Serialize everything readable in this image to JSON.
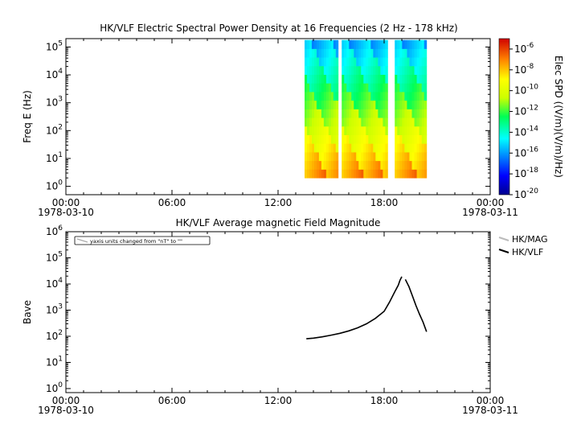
{
  "chart_data": [
    {
      "type": "heatmap",
      "title": "HK/VLF  Electric Spectral Power Density at 16 Frequencies (2 Hz - 178 kHz)",
      "ylabel": "Freq E (Hz)",
      "y_scale": "log",
      "ylim": [
        0.5,
        200000
      ],
      "y_ticks": [
        {
          "value": 1,
          "base": "10",
          "exp": "0"
        },
        {
          "value": 10,
          "base": "10",
          "exp": "1"
        },
        {
          "value": 100,
          "base": "10",
          "exp": "2"
        },
        {
          "value": 1000,
          "base": "10",
          "exp": "3"
        },
        {
          "value": 10000,
          "base": "10",
          "exp": "4"
        },
        {
          "value": 100000,
          "base": "10",
          "exp": "5"
        }
      ],
      "x_range_hours": [
        0,
        24
      ],
      "x_ticks": [
        {
          "hour": 0,
          "label": "00:00",
          "date": "1978-03-10"
        },
        {
          "hour": 6,
          "label": "06:00",
          "date": ""
        },
        {
          "hour": 12,
          "label": "12:00",
          "date": ""
        },
        {
          "hour": 18,
          "label": "18:00",
          "date": ""
        },
        {
          "hour": 24,
          "label": "00:00",
          "date": "1978-03-11"
        }
      ],
      "data_blocks_hours": [
        [
          13.5,
          15.4
        ],
        [
          15.6,
          18.2
        ],
        [
          18.6,
          20.4
        ]
      ],
      "frequency_range_hz": [
        2,
        178000
      ],
      "colorbar": {
        "label": "Elec SPD ((V/m)(V/m)/Hz)",
        "scale": "log",
        "range": [
          1e-20,
          1e-05
        ],
        "ticks": [
          {
            "value": 1e-06,
            "base": "10",
            "exp": "-6"
          },
          {
            "value": 1e-08,
            "base": "10",
            "exp": "-8"
          },
          {
            "value": 1e-10,
            "base": "10",
            "exp": "-10"
          },
          {
            "value": 1e-12,
            "base": "10",
            "exp": "-12"
          },
          {
            "value": 1e-14,
            "base": "10",
            "exp": "-14"
          },
          {
            "value": 1e-16,
            "base": "10",
            "exp": "-16"
          },
          {
            "value": 1e-18,
            "base": "10",
            "exp": "-18"
          },
          {
            "value": 1e-20,
            "base": "10",
            "exp": "-20"
          }
        ]
      }
    },
    {
      "type": "line",
      "title": "HK/VLF  Average magnetic Field Magnitude",
      "ylabel": "Bave",
      "y_scale": "log",
      "ylim": [
        0.7,
        1000000
      ],
      "y_ticks": [
        {
          "value": 1,
          "base": "10",
          "exp": "0"
        },
        {
          "value": 10,
          "base": "10",
          "exp": "1"
        },
        {
          "value": 100,
          "base": "10",
          "exp": "2"
        },
        {
          "value": 1000,
          "base": "10",
          "exp": "3"
        },
        {
          "value": 10000,
          "base": "10",
          "exp": "4"
        },
        {
          "value": 100000,
          "base": "10",
          "exp": "5"
        },
        {
          "value": 1000000,
          "base": "10",
          "exp": "6"
        }
      ],
      "x_range_hours": [
        0,
        24
      ],
      "x_ticks": [
        {
          "hour": 0,
          "label": "00:00",
          "date": "1978-03-10"
        },
        {
          "hour": 6,
          "label": "06:00",
          "date": ""
        },
        {
          "hour": 12,
          "label": "12:00",
          "date": ""
        },
        {
          "hour": 18,
          "label": "18:00",
          "date": ""
        },
        {
          "hour": 24,
          "label": "00:00",
          "date": "1978-03-11"
        }
      ],
      "annotation": "yaxis units changed from \"nT\" to \"\"",
      "legend": {
        "placement": "right"
      },
      "series": [
        {
          "name": "HK/MAG",
          "color": "#bbbbbb",
          "points": []
        },
        {
          "name": "HK/VLF",
          "color": "#000000",
          "points": [
            [
              13.6,
              80
            ],
            [
              14.0,
              85
            ],
            [
              14.5,
              95
            ],
            [
              15.0,
              110
            ],
            [
              15.5,
              130
            ],
            [
              16.0,
              160
            ],
            [
              16.5,
              210
            ],
            [
              17.0,
              300
            ],
            [
              17.5,
              480
            ],
            [
              18.0,
              900
            ],
            [
              18.3,
              2000
            ],
            [
              18.6,
              5000
            ],
            [
              18.8,
              9000
            ],
            [
              18.9,
              14000
            ],
            [
              19.0,
              19000
            ]
          ]
        },
        {
          "name": "",
          "color": "#000000",
          "points": [
            [
              19.2,
              15000
            ],
            [
              19.4,
              8000
            ],
            [
              19.6,
              3500
            ],
            [
              19.8,
              1500
            ],
            [
              20.0,
              700
            ],
            [
              20.2,
              350
            ],
            [
              20.4,
              150
            ]
          ]
        }
      ]
    }
  ]
}
